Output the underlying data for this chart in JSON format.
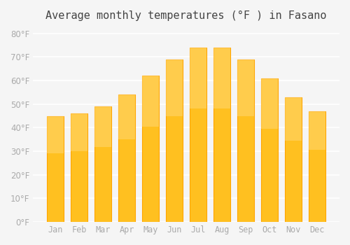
{
  "title": "Average monthly temperatures (°F ) in Fasano",
  "months": [
    "Jan",
    "Feb",
    "Mar",
    "Apr",
    "May",
    "Jun",
    "Jul",
    "Aug",
    "Sep",
    "Oct",
    "Nov",
    "Dec"
  ],
  "values": [
    45,
    46,
    49,
    54,
    62,
    69,
    74,
    74,
    69,
    61,
    53,
    47
  ],
  "bar_color": "#FFC020",
  "bar_edge_color": "#FFA500",
  "background_color": "#F5F5F5",
  "grid_color": "#FFFFFF",
  "tick_color": "#AAAAAA",
  "ylim": [
    0,
    82
  ],
  "yticks": [
    0,
    10,
    20,
    30,
    40,
    50,
    60,
    70,
    80
  ],
  "title_fontsize": 11,
  "tick_fontsize": 8.5
}
